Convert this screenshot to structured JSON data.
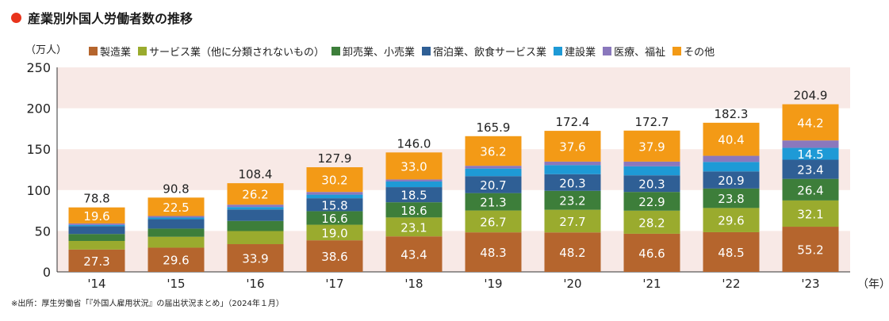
{
  "title": "産業別外国人労働者数の推移",
  "source": "※出所：厚生労働省「『外国人雇用状況』の届出状況まとめ」（2024年１月）",
  "chart_data": {
    "type": "bar",
    "stacked": true,
    "ylabel": "（万人）",
    "xlabel": "（年）",
    "ylim": [
      0,
      250
    ],
    "yticks": [
      0,
      50,
      100,
      150,
      200,
      250
    ],
    "grid": "alternating horizontal bands",
    "legend_position": "top",
    "categories": [
      "'14",
      "'15",
      "'16",
      "'17",
      "'18",
      "'19",
      "'20",
      "'21",
      "'22",
      "'23"
    ],
    "totals": [
      "78.8",
      "90.8",
      "108.4",
      "127.9",
      "146.0",
      "165.9",
      "172.4",
      "172.7",
      "182.3",
      "204.9"
    ],
    "series": [
      {
        "name": "製造業",
        "color": "#b5652d",
        "values": [
          27.3,
          29.6,
          33.9,
          38.6,
          43.4,
          48.3,
          48.2,
          46.6,
          48.5,
          55.2
        ],
        "labels": [
          "27.3",
          "29.6",
          "33.9",
          "38.6",
          "43.4",
          "48.3",
          "48.2",
          "46.6",
          "48.5",
          "55.2"
        ]
      },
      {
        "name": "サービス業（他に分類されないもの）",
        "color": "#9aab2e",
        "values": [
          10.5,
          13.3,
          16.0,
          19.0,
          23.1,
          26.7,
          27.7,
          28.2,
          29.6,
          32.1
        ],
        "labels": [
          "",
          "",
          "",
          "19.0",
          "23.1",
          "26.7",
          "27.7",
          "28.2",
          "29.6",
          "32.1"
        ]
      },
      {
        "name": "卸売業、小売業",
        "color": "#3d7e3a",
        "values": [
          8.5,
          10.0,
          12.4,
          16.6,
          18.6,
          21.3,
          23.2,
          22.9,
          23.8,
          26.4
        ],
        "labels": [
          "",
          "",
          "",
          "16.6",
          "18.6",
          "21.3",
          "23.2",
          "22.9",
          "23.8",
          "26.4"
        ]
      },
      {
        "name": "宿泊業、飲食サービス業",
        "color": "#2f5f95",
        "values": [
          9.5,
          11.5,
          14.0,
          15.8,
          18.5,
          20.7,
          20.3,
          20.3,
          20.9,
          23.4
        ],
        "labels": [
          "",
          "",
          "",
          "15.8",
          "18.5",
          "20.7",
          "20.3",
          "20.3",
          "20.9",
          "23.4"
        ]
      },
      {
        "name": "建設業",
        "color": "#1e9ad6",
        "values": [
          1.5,
          2.0,
          3.0,
          4.4,
          6.9,
          9.3,
          11.1,
          11.0,
          11.6,
          14.5
        ],
        "labels": [
          "",
          "",
          "",
          "",
          "",
          "",
          "",
          "",
          "",
          "14.5"
        ]
      },
      {
        "name": "医療、福祉",
        "color": "#8a78bd",
        "values": [
          1.9,
          1.9,
          2.9,
          3.3,
          2.5,
          3.4,
          4.3,
          5.8,
          7.5,
          9.1
        ],
        "labels": [
          "",
          "",
          "",
          "",
          "",
          "",
          "",
          "",
          "",
          ""
        ]
      },
      {
        "name": "その他",
        "color": "#f39a16",
        "values": [
          19.6,
          22.5,
          26.2,
          30.2,
          33.0,
          36.2,
          37.6,
          37.9,
          40.4,
          44.2
        ],
        "labels": [
          "19.6",
          "22.5",
          "26.2",
          "30.2",
          "33.0",
          "36.2",
          "37.6",
          "37.9",
          "40.4",
          "44.2"
        ]
      }
    ]
  }
}
